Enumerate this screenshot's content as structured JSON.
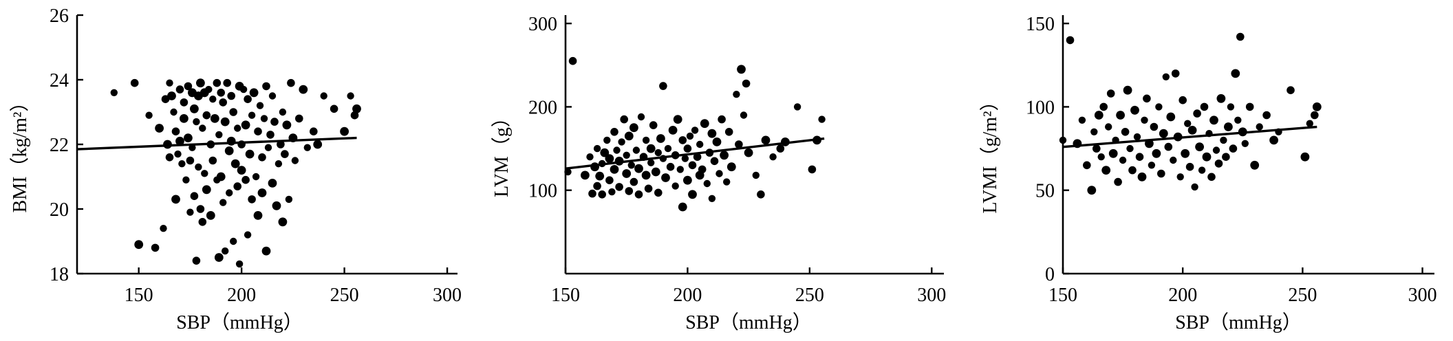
{
  "chart_data": [
    {
      "type": "scatter",
      "title": "",
      "xlabel": "SBP（mmHg）",
      "ylabel": "BMI（kg/m²）",
      "xlim": [
        120,
        305
      ],
      "ylim": [
        18,
        26
      ],
      "xticks": [
        "150",
        "200",
        "250",
        "300"
      ],
      "yticks": [
        "18",
        "20",
        "22",
        "24",
        "26"
      ],
      "trend": {
        "x": [
          120,
          256
        ],
        "y": [
          21.85,
          22.2
        ]
      },
      "x": [
        138,
        148,
        150,
        155,
        158,
        160,
        162,
        163,
        164,
        165,
        165,
        166,
        167,
        168,
        168,
        169,
        170,
        170,
        171,
        172,
        172,
        173,
        174,
        174,
        175,
        175,
        176,
        176,
        177,
        177,
        178,
        178,
        179,
        179,
        180,
        180,
        181,
        181,
        182,
        182,
        183,
        183,
        184,
        185,
        185,
        186,
        186,
        187,
        188,
        188,
        189,
        189,
        190,
        190,
        191,
        191,
        192,
        192,
        193,
        194,
        194,
        195,
        195,
        196,
        196,
        197,
        198,
        198,
        199,
        199,
        200,
        200,
        201,
        202,
        202,
        203,
        203,
        204,
        205,
        205,
        206,
        207,
        208,
        208,
        209,
        210,
        210,
        211,
        212,
        212,
        213,
        214,
        215,
        215,
        216,
        217,
        218,
        219,
        220,
        220,
        221,
        222,
        223,
        224,
        225,
        226,
        228,
        230,
        232,
        235,
        237,
        240,
        245,
        250,
        253,
        255,
        256
      ],
      "y": [
        23.6,
        23.9,
        18.9,
        22.9,
        18.8,
        22.5,
        19.4,
        23.4,
        22.0,
        23.9,
        21.6,
        23.5,
        23.0,
        22.4,
        20.3,
        21.7,
        23.7,
        22.1,
        21.4,
        23.3,
        22.8,
        20.9,
        23.8,
        22.2,
        19.9,
        21.5,
        23.6,
        21.9,
        20.4,
        23.1,
        22.7,
        18.4,
        23.5,
        21.3,
        20.0,
        23.9,
        22.5,
        19.6,
        23.6,
        21.1,
        22.9,
        20.6,
        23.7,
        22.0,
        19.8,
        23.4,
        21.5,
        22.8,
        20.9,
        23.9,
        18.5,
        22.3,
        23.6,
        21.0,
        20.2,
        23.3,
        22.7,
        18.7,
        23.9,
        21.8,
        20.5,
        23.5,
        22.1,
        19.0,
        23.0,
        21.4,
        22.5,
        20.7,
        23.8,
        18.3,
        22.0,
        21.2,
        23.7,
        20.9,
        22.6,
        19.2,
        23.4,
        21.7,
        22.9,
        20.3,
        23.6,
        21.0,
        22.4,
        19.8,
        23.2,
        21.6,
        20.5,
        22.8,
        23.8,
        18.7,
        21.9,
        22.3,
        20.8,
        23.5,
        22.7,
        20.1,
        21.4,
        22.0,
        19.6,
        23.0,
        21.7,
        22.6,
        20.3,
        23.9,
        22.2,
        21.5,
        22.8,
        23.7,
        21.9,
        22.4,
        22.0,
        23.5,
        23.1,
        22.4,
        23.5,
        22.9,
        23.1
      ]
    },
    {
      "type": "scatter",
      "title": "",
      "xlabel": "SBP（mmHg）",
      "ylabel": "LVM（g）",
      "xlim": [
        150,
        305
      ],
      "ylim": [
        0,
        310
      ],
      "xticks": [
        "150",
        "200",
        "250",
        "300"
      ],
      "yticks": [
        "100",
        "200",
        "300"
      ],
      "trend": {
        "x": [
          150,
          256
        ],
        "y": [
          126,
          162
        ]
      },
      "x": [
        151,
        153,
        158,
        160,
        161,
        162,
        163,
        163,
        164,
        165,
        165,
        166,
        167,
        168,
        168,
        169,
        170,
        170,
        171,
        172,
        172,
        173,
        174,
        175,
        175,
        176,
        176,
        177,
        178,
        178,
        179,
        180,
        180,
        181,
        182,
        183,
        183,
        184,
        185,
        185,
        186,
        187,
        188,
        188,
        189,
        190,
        190,
        191,
        192,
        193,
        194,
        195,
        195,
        196,
        197,
        198,
        198,
        199,
        200,
        200,
        201,
        202,
        202,
        203,
        204,
        205,
        205,
        206,
        207,
        208,
        209,
        210,
        210,
        211,
        212,
        213,
        214,
        215,
        216,
        217,
        218,
        220,
        221,
        222,
        223,
        224,
        225,
        228,
        230,
        232,
        235,
        238,
        240,
        245,
        251,
        253,
        255
      ],
      "y": [
        122,
        255,
        118,
        140,
        96,
        128,
        150,
        105,
        117,
        132,
        95,
        145,
        160,
        112,
        138,
        98,
        170,
        125,
        148,
        104,
        135,
        158,
        185,
        120,
        142,
        99,
        165,
        130,
        110,
        175,
        148,
        95,
        126,
        188,
        140,
        118,
        160,
        102,
        150,
        133,
        178,
        122,
        145,
        97,
        162,
        138,
        225,
        115,
        150,
        128,
        172,
        105,
        142,
        185,
        125,
        160,
        80,
        138,
        150,
        112,
        165,
        130,
        95,
        172,
        140,
        118,
        155,
        125,
        180,
        108,
        145,
        168,
        90,
        135,
        158,
        120,
        185,
        142,
        110,
        170,
        128,
        215,
        155,
        245,
        190,
        228,
        145,
        118,
        95,
        160,
        140,
        150,
        158,
        200,
        125,
        160,
        185
      ]
    },
    {
      "type": "scatter",
      "title": "",
      "xlabel": "SBP（mmHg）",
      "ylabel": "LVMI（g/m²）",
      "xlim": [
        150,
        305
      ],
      "ylim": [
        0,
        155
      ],
      "xticks": [
        "150",
        "200",
        "250",
        "300"
      ],
      "yticks": [
        "0",
        "50",
        "100",
        "150"
      ],
      "trend": {
        "x": [
          150,
          256
        ],
        "y": [
          76,
          88
        ]
      },
      "x": [
        150,
        153,
        156,
        158,
        160,
        162,
        163,
        164,
        165,
        166,
        167,
        168,
        169,
        170,
        171,
        172,
        173,
        174,
        175,
        176,
        177,
        178,
        179,
        180,
        181,
        182,
        183,
        184,
        185,
        186,
        187,
        188,
        189,
        190,
        191,
        192,
        193,
        194,
        195,
        196,
        197,
        198,
        199,
        200,
        201,
        202,
        203,
        204,
        205,
        206,
        207,
        208,
        209,
        210,
        211,
        212,
        213,
        214,
        215,
        216,
        217,
        218,
        219,
        220,
        221,
        222,
        223,
        224,
        225,
        226,
        228,
        230,
        232,
        235,
        238,
        240,
        245,
        251,
        253,
        255,
        256
      ],
      "y": [
        80,
        140,
        78,
        92,
        65,
        50,
        85,
        75,
        95,
        70,
        100,
        62,
        88,
        108,
        72,
        80,
        55,
        95,
        68,
        85,
        110,
        75,
        62,
        98,
        82,
        70,
        58,
        92,
        105,
        78,
        65,
        88,
        72,
        100,
        60,
        84,
        118,
        76,
        94,
        68,
        120,
        82,
        58,
        104,
        72,
        90,
        64,
        86,
        52,
        96,
        76,
        62,
        100,
        70,
        84,
        58,
        92,
        74,
        66,
        105,
        80,
        70,
        88,
        100,
        75,
        120,
        92,
        142,
        85,
        78,
        100,
        65,
        88,
        95,
        80,
        85,
        110,
        70,
        90,
        95,
        100
      ]
    }
  ]
}
